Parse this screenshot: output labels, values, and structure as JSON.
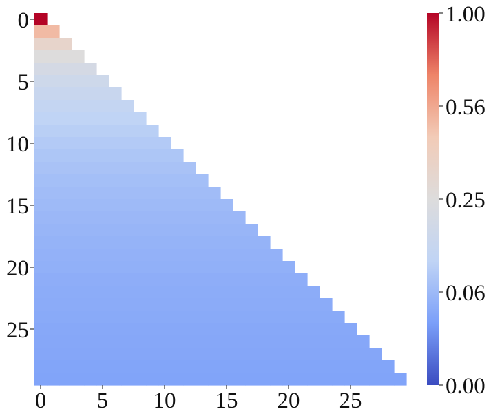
{
  "chart_data": {
    "type": "heatmap",
    "title": "",
    "xlabel": "",
    "ylabel": "",
    "rows": 30,
    "cols": 30,
    "mask": "lower-triangular",
    "x_ticks": [
      0,
      5,
      10,
      15,
      20,
      25
    ],
    "y_ticks": [
      0,
      5,
      10,
      15,
      20,
      25
    ],
    "row_values": [
      1.0,
      0.5,
      0.333,
      0.25,
      0.2,
      0.167,
      0.143,
      0.125,
      0.111,
      0.1,
      0.091,
      0.083,
      0.077,
      0.071,
      0.067,
      0.0625,
      0.059,
      0.056,
      0.053,
      0.05,
      0.048,
      0.045,
      0.043,
      0.042,
      0.04,
      0.038,
      0.037,
      0.036,
      0.034,
      0.033
    ],
    "value_rule": "each row i has value row_values[i] in columns 0..i; cells above diagonal are empty",
    "colorbar": {
      "ticks": [
        "1.00",
        "0.56",
        "0.25",
        "0.06",
        "0.00"
      ],
      "tick_values": [
        1.0,
        0.5625,
        0.25,
        0.0625,
        0.0
      ],
      "scale": "sqrt",
      "vmin": 0.0,
      "vmax": 1.0,
      "colormap": "coolwarm",
      "colormap_stops": [
        "#3b4cc0",
        "#7b9ff9",
        "#c0d4f5",
        "#dddcdc",
        "#f2cbb7",
        "#ee8468",
        "#b40426"
      ]
    }
  }
}
